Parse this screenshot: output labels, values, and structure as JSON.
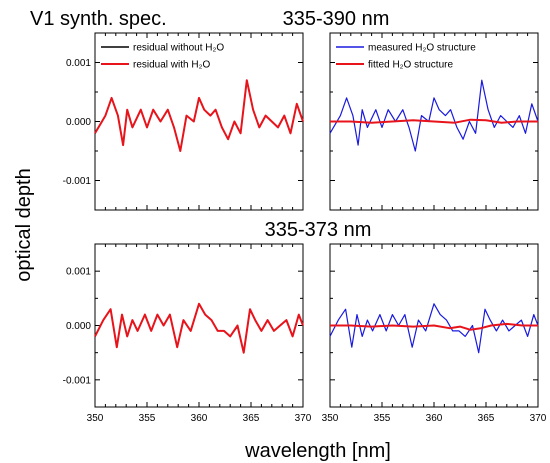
{
  "title": "V1 synth. spec.",
  "xlabel": "wavelength [nm]",
  "ylabel": "optical depth",
  "colors": {
    "black": "#000000",
    "red": "#e8141b",
    "blue": "#1a1adf"
  },
  "chart_data": [
    {
      "type": "line",
      "panel": "top-left",
      "title": "",
      "xlim": [
        350,
        370
      ],
      "ylim": [
        -0.0015,
        0.0015
      ],
      "yticks": [
        "0.001",
        "0.000",
        "-0.001"
      ],
      "xticks": [],
      "legend": "top-left",
      "series": [
        {
          "name": "residual without H₂O",
          "color": "#000000",
          "x": [
            350,
            351,
            351.6,
            352.2,
            352.7,
            353.1,
            353.6,
            354.4,
            355,
            355.6,
            356.3,
            357,
            357.6,
            358.2,
            358.8,
            359.5,
            360,
            360.5,
            361.1,
            361.6,
            362.2,
            362.8,
            363.4,
            364,
            364.6,
            365.2,
            365.8,
            366.4,
            367,
            367.6,
            368.2,
            368.8,
            369.4,
            370
          ],
          "y": [
            -0.0002,
            0.0001,
            0.0004,
            0.0001,
            -0.0004,
            0.0002,
            -0.0001,
            0.0002,
            -0.0001,
            0.0002,
            0,
            0.0002,
            -0.0001,
            -0.0005,
            0.0001,
            0,
            0.0004,
            0.0002,
            0.0001,
            0.0002,
            -0.0001,
            -0.0003,
            0,
            -0.0002,
            0.0007,
            0.0002,
            -0.0001,
            0.0001,
            0,
            -0.0001,
            0.0001,
            -0.0002,
            0.0003,
            0
          ]
        },
        {
          "name": "residual with H₂O",
          "color": "#e8141b",
          "x": [
            350,
            351,
            351.6,
            352.2,
            352.7,
            353.1,
            353.6,
            354.4,
            355,
            355.6,
            356.3,
            357,
            357.6,
            358.2,
            358.8,
            359.5,
            360,
            360.5,
            361.1,
            361.6,
            362.2,
            362.8,
            363.4,
            364,
            364.6,
            365.2,
            365.8,
            366.4,
            367,
            367.6,
            368.2,
            368.8,
            369.4,
            370
          ],
          "y": [
            -0.0002,
            0.0001,
            0.0004,
            0.0001,
            -0.0004,
            0.0002,
            -0.0001,
            0.0002,
            -0.0001,
            0.0002,
            0,
            0.0002,
            -0.0001,
            -0.0005,
            0.0001,
            0,
            0.0004,
            0.0002,
            0.0001,
            0.0002,
            -0.0001,
            -0.0003,
            0,
            -0.0002,
            0.0007,
            0.0002,
            -0.0001,
            0.0001,
            0,
            -0.0001,
            0.0001,
            -0.0002,
            0.0003,
            0
          ]
        }
      ]
    },
    {
      "type": "line",
      "panel": "top-right",
      "title": "335-390 nm",
      "xlim": [
        350,
        370
      ],
      "ylim": [
        -0.0015,
        0.0015
      ],
      "yticks": [],
      "xticks": [],
      "legend": "top-right",
      "series": [
        {
          "name": "measured H₂O  structure",
          "color": "#1a1adf",
          "x": [
            350,
            351,
            351.6,
            352.2,
            352.7,
            353.1,
            353.6,
            354.4,
            355,
            355.6,
            356.3,
            357,
            357.6,
            358.2,
            358.8,
            359.5,
            360,
            360.5,
            361.1,
            361.6,
            362.2,
            362.8,
            363.4,
            364,
            364.6,
            365.2,
            365.8,
            366.4,
            367,
            367.6,
            368.2,
            368.8,
            369.4,
            370
          ],
          "y": [
            -0.0002,
            0.0001,
            0.0004,
            0.0001,
            -0.0004,
            0.0002,
            -0.0001,
            0.0002,
            -0.0001,
            0.0002,
            0,
            0.0002,
            -0.0001,
            -0.0005,
            0.0001,
            0,
            0.0004,
            0.0002,
            0.0001,
            0.0002,
            -0.0001,
            -0.0003,
            0,
            -0.0002,
            0.0007,
            0.0002,
            -0.0001,
            0.0001,
            0,
            -0.0001,
            0.0001,
            -0.0002,
            0.0003,
            0
          ]
        },
        {
          "name": "fitted H₂O structure",
          "color": "#e8141b",
          "x": [
            350,
            352,
            354,
            356,
            358,
            360,
            362,
            363.5,
            365,
            366.5,
            368,
            370
          ],
          "y": [
            0,
            0,
            -2e-05,
            0,
            2e-05,
            0,
            -2e-05,
            3e-05,
            2e-05,
            -2e-05,
            0,
            0
          ]
        }
      ]
    },
    {
      "type": "line",
      "panel": "bottom-left",
      "title": "",
      "xlim": [
        350,
        370
      ],
      "ylim": [
        -0.0015,
        0.0015
      ],
      "yticks": [
        "0.001",
        "0.000",
        "-0.001"
      ],
      "xticks": [
        "350",
        "355",
        "360",
        "365",
        "370"
      ],
      "series": [
        {
          "color": "#000000",
          "x": [
            350,
            350.8,
            351.5,
            352.1,
            352.6,
            353.1,
            353.6,
            354.1,
            354.8,
            355.4,
            356,
            356.6,
            357.2,
            357.9,
            358.5,
            359.2,
            360,
            360.6,
            361.2,
            361.8,
            362.4,
            363,
            363.7,
            364.3,
            364.9,
            365.4,
            366,
            366.6,
            367.2,
            367.8,
            368.4,
            369,
            369.6,
            370
          ],
          "y": [
            -0.0002,
            0.0001,
            0.0003,
            -0.0004,
            0.0002,
            -0.0002,
            0.0001,
            -0.0001,
            0.0002,
            -0.0001,
            0.0002,
            0,
            0.0002,
            -0.0004,
            0.0001,
            -0.0001,
            0.0004,
            0.0002,
            0.0001,
            -0.0001,
            -0.0001,
            -0.0002,
            -2e-05,
            -0.0005,
            0.0003,
            0.0001,
            -0.0001,
            0.0001,
            -0.0001,
            0,
            0.0001,
            -0.0002,
            0.0002,
            0
          ]
        },
        {
          "color": "#e8141b",
          "x": [
            350,
            350.8,
            351.5,
            352.1,
            352.6,
            353.1,
            353.6,
            354.1,
            354.8,
            355.4,
            356,
            356.6,
            357.2,
            357.9,
            358.5,
            359.2,
            360,
            360.6,
            361.2,
            361.8,
            362.4,
            363,
            363.7,
            364.3,
            364.9,
            365.4,
            366,
            366.6,
            367.2,
            367.8,
            368.4,
            369,
            369.6,
            370
          ],
          "y": [
            -0.0002,
            0.0001,
            0.0003,
            -0.0004,
            0.0002,
            -0.0002,
            0.0001,
            -0.0001,
            0.0002,
            -0.0001,
            0.0002,
            0,
            0.0002,
            -0.0004,
            0.0001,
            -0.0001,
            0.0004,
            0.0002,
            0.0001,
            -0.0001,
            -0.0001,
            -0.0002,
            0,
            -0.0005,
            0.0003,
            0.0001,
            -0.0001,
            0.0001,
            -0.0001,
            0,
            0.0001,
            -0.0002,
            0.0002,
            0
          ]
        }
      ]
    },
    {
      "type": "line",
      "panel": "bottom-right",
      "title": "335-373 nm",
      "xlim": [
        350,
        370
      ],
      "ylim": [
        -0.0015,
        0.0015
      ],
      "yticks": [],
      "xticks": [
        "350",
        "355",
        "360",
        "365",
        "370"
      ],
      "series": [
        {
          "color": "#1a1adf",
          "x": [
            350,
            350.8,
            351.5,
            352.1,
            352.6,
            353.1,
            353.6,
            354.1,
            354.8,
            355.4,
            356,
            356.6,
            357.2,
            357.9,
            358.5,
            359.2,
            360,
            360.6,
            361.2,
            361.8,
            362.4,
            363,
            363.7,
            364.3,
            364.9,
            365.4,
            366,
            366.6,
            367.2,
            367.8,
            368.4,
            369,
            369.6,
            370
          ],
          "y": [
            -0.0002,
            0.0001,
            0.0003,
            -0.0004,
            0.0002,
            -0.0002,
            0.0001,
            -0.0001,
            0.0002,
            -0.0001,
            0.0002,
            0,
            0.0002,
            -0.0004,
            0.0001,
            -0.0001,
            0.0004,
            0.0002,
            0.0001,
            -0.0001,
            -0.0001,
            -0.0002,
            0,
            -0.0005,
            0.0003,
            0.0001,
            -0.0001,
            0.0001,
            -0.0001,
            0,
            0.0001,
            -0.0002,
            0.0002,
            0
          ]
        },
        {
          "color": "#e8141b",
          "x": [
            350,
            352,
            354,
            356,
            358,
            360,
            361.5,
            362.5,
            363.5,
            364.5,
            365.5,
            367,
            368.5,
            370
          ],
          "y": [
            0,
            0,
            -2e-05,
            0,
            -2e-05,
            0,
            -5e-05,
            -2e-05,
            -8e-05,
            -5e-05,
            0,
            3e-05,
            0,
            0
          ]
        }
      ]
    }
  ]
}
